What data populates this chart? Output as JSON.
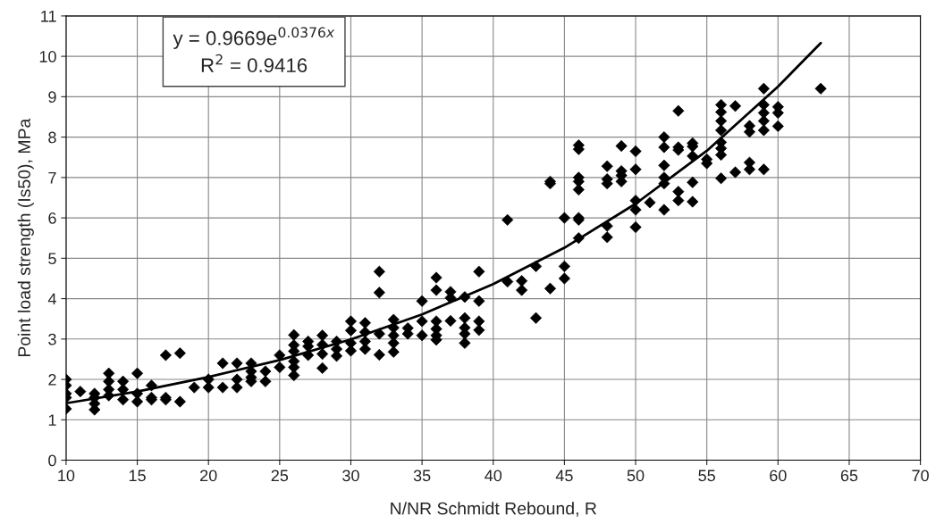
{
  "chart_data": {
    "type": "scatter",
    "xlabel": "N/NR Schmidt Rebound, R",
    "ylabel": "Point load strength (Is50), MPa",
    "annotations": [
      "y = 0.9669e$^{0.0376x}$",
      "R$^{2}$ = 0.9416"
    ],
    "xlim": [
      10,
      70
    ],
    "xticks": [
      10,
      15,
      20,
      25,
      30,
      35,
      40,
      45,
      50,
      55,
      60,
      65,
      70
    ],
    "ylim": [
      0,
      11
    ],
    "yticks": [
      0,
      1,
      2,
      3,
      4,
      5,
      6,
      7,
      8,
      9,
      10,
      11
    ],
    "grid": true,
    "legend": false,
    "series": [
      {
        "color": "#000000",
        "marker": "diamond",
        "x": [
          10,
          10,
          10,
          10,
          10,
          11,
          12,
          12,
          12,
          12,
          13,
          13,
          13,
          13,
          14,
          14,
          14,
          15,
          15,
          15,
          16,
          16,
          16,
          17,
          17,
          17,
          18,
          18,
          19,
          20,
          20,
          21,
          21,
          22,
          22,
          22,
          23,
          23,
          23,
          23,
          24,
          24,
          25,
          25,
          26,
          26,
          26,
          26,
          26,
          26,
          27,
          27,
          27,
          28,
          28,
          28,
          28,
          29,
          29,
          29,
          30,
          30,
          30,
          30,
          31,
          31,
          31,
          31,
          32,
          32,
          32,
          32,
          33,
          33,
          33,
          33,
          33,
          34,
          34,
          35,
          35,
          35,
          36,
          36,
          36,
          36,
          36,
          36,
          37,
          37,
          37,
          38,
          38,
          38,
          38,
          38,
          39,
          39,
          39,
          39,
          41,
          41,
          42,
          42,
          43,
          43,
          44,
          44,
          44,
          45,
          45,
          45,
          46,
          46,
          46,
          46,
          46,
          46,
          46,
          46,
          48,
          48,
          48,
          48,
          48,
          49,
          49,
          49,
          49,
          50,
          50,
          50,
          50,
          50,
          51,
          52,
          52,
          52,
          52,
          52,
          52,
          53,
          53,
          53,
          53,
          53,
          54,
          54,
          54,
          54,
          54,
          55,
          55,
          56,
          56,
          56,
          56,
          56,
          56,
          56,
          56,
          57,
          57,
          58,
          58,
          58,
          58,
          59,
          59,
          59,
          59,
          59,
          59,
          60,
          60,
          60,
          63
        ],
        "values": [
          2.0,
          1.85,
          1.65,
          1.55,
          1.27,
          1.7,
          1.65,
          1.55,
          1.4,
          1.25,
          2.15,
          1.95,
          1.75,
          1.6,
          1.95,
          1.75,
          1.5,
          2.15,
          1.65,
          1.45,
          1.85,
          1.55,
          1.5,
          2.6,
          1.55,
          1.5,
          2.65,
          1.45,
          1.8,
          2.0,
          1.8,
          2.4,
          1.8,
          2.4,
          2.0,
          1.8,
          2.4,
          2.2,
          2.05,
          1.95,
          2.2,
          1.95,
          2.6,
          2.3,
          3.1,
          2.85,
          2.7,
          2.45,
          2.3,
          2.1,
          2.94,
          2.82,
          2.6,
          3.09,
          2.86,
          2.63,
          2.28,
          2.94,
          2.75,
          2.58,
          3.44,
          3.21,
          2.9,
          2.71,
          3.4,
          3.17,
          2.94,
          2.75,
          4.67,
          4.15,
          3.13,
          2.61,
          3.48,
          3.28,
          3.09,
          2.9,
          2.68,
          3.27,
          3.13,
          3.94,
          3.44,
          3.09,
          4.52,
          4.21,
          3.44,
          3.25,
          3.09,
          2.98,
          4.17,
          4.02,
          3.45,
          4.04,
          3.52,
          3.28,
          3.13,
          2.9,
          4.67,
          3.94,
          3.44,
          3.22,
          5.95,
          4.42,
          4.44,
          4.21,
          4.8,
          3.52,
          6.9,
          6.85,
          4.25,
          6.0,
          4.8,
          4.5,
          7.8,
          7.7,
          7.0,
          6.9,
          6.7,
          6.0,
          5.95,
          5.5,
          7.28,
          6.96,
          6.85,
          5.8,
          5.52,
          7.78,
          7.16,
          7.05,
          6.9,
          7.65,
          7.2,
          6.43,
          6.2,
          5.77,
          6.38,
          8.0,
          7.75,
          7.3,
          7.0,
          6.85,
          6.2,
          8.65,
          7.75,
          7.68,
          6.65,
          6.43,
          7.85,
          7.77,
          7.53,
          6.88,
          6.4,
          7.45,
          7.35,
          8.8,
          8.62,
          8.4,
          8.17,
          7.87,
          7.72,
          7.56,
          6.98,
          8.77,
          7.13,
          8.28,
          8.13,
          7.37,
          7.2,
          9.2,
          8.8,
          8.6,
          8.4,
          8.17,
          7.2,
          8.75,
          8.6,
          8.27,
          9.2
        ]
      },
      {
        "type": "line",
        "color": "#000000",
        "marker": "none",
        "line_style": "solid",
        "x": [
          10,
          15,
          20,
          25,
          30,
          35,
          40,
          45,
          50,
          55,
          60,
          63
        ],
        "values": [
          1.41,
          1.7,
          2.06,
          2.48,
          2.99,
          3.61,
          4.36,
          5.26,
          6.35,
          7.66,
          9.25,
          10.33
        ]
      }
    ]
  }
}
